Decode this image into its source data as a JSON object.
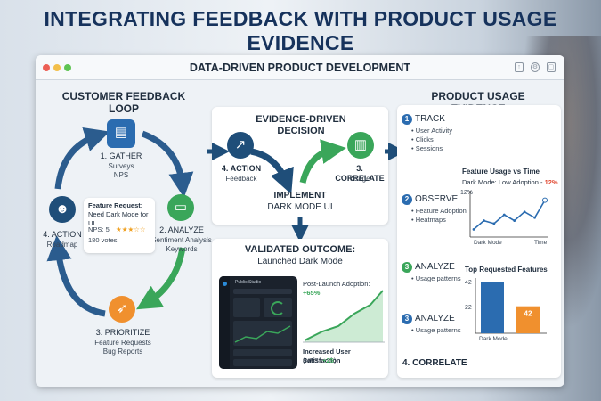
{
  "headline": "INTEGRATING FEEDBACK WITH PRODUCT USAGE EVIDENCE",
  "window": {
    "title": "DATA-DRIVEN PRODUCT DEVELOPMENT"
  },
  "loop": {
    "title": "CUSTOMER FEEDBACK LOOP",
    "gather": {
      "label": "1. GATHER",
      "sub1": "Surveys",
      "sub2": "NPS"
    },
    "analyze": {
      "label": "2. ANALYZE",
      "sub1": "Sentiment Analysis",
      "sub2": "Keywords"
    },
    "prioritize": {
      "label": "3. PRIORITIZE",
      "sub1": "Feature Requests",
      "sub2": "Bug Reports"
    },
    "action": {
      "label": "4. ACTION",
      "sub1": "Roadmap"
    },
    "request_card": {
      "title": "Feature Request:",
      "text": "Need Dark Mode for UI",
      "nps": "NPS: 5",
      "stars": "★★★☆☆",
      "votes": "180 votes"
    }
  },
  "decision": {
    "title_line1": "EVIDENCE-DRIVEN",
    "title_line2": "DECISION",
    "action_label": "4. ACTION",
    "action_sub": "Feedback",
    "correlate_label": "3. CORRELATE",
    "correlate_sub": "Usage",
    "implement_line1": "IMPLEMENT",
    "implement_line2": "DARK MODE UI"
  },
  "outcome": {
    "title": "VALIDATED OUTCOME:",
    "subtitle": "Launched Dark Mode",
    "adoption_label": "Post-Launch Adoption:",
    "adoption_value": "+65%",
    "satisfaction_line1": "Increased User Satisfaction",
    "satisfaction_line2": "(NPS:",
    "satisfaction_value": "+25",
    "satisfaction_close": ")",
    "mock_title": "Public Studio"
  },
  "usage": {
    "title": "PRODUCT USAGE EVIDENCE",
    "track": {
      "num": "1",
      "label": "TRACK",
      "bullets": [
        "User Activity",
        "Clicks",
        "Sessions"
      ]
    },
    "observe": {
      "num": "2",
      "label": "OBSERVE",
      "bullets": [
        "Feature Adoption",
        "Heatmaps"
      ]
    },
    "analyze1": {
      "num": "3",
      "label": "ANALYZE",
      "bullets": [
        "Usage patterns"
      ]
    },
    "analyze2": {
      "num": "3",
      "label": "ANALYZE",
      "bullets": [
        "Usage patterns"
      ]
    },
    "correlate": {
      "label": "4. CORRELATE"
    }
  },
  "chart_data": [
    {
      "type": "line",
      "title": "Feature Usage vs Time",
      "subtitle_prefix": "Dark Mode: Low Adoption -",
      "subtitle_value": "12%",
      "ytick": "12%",
      "xticks": [
        "Dark Mode",
        "Time"
      ],
      "x": [
        0,
        1,
        2,
        3,
        4,
        5,
        6,
        7
      ],
      "values": [
        2,
        5,
        4,
        7,
        5,
        8,
        6,
        12
      ],
      "ylim": [
        0,
        14
      ],
      "color": "#2b6cb0"
    },
    {
      "type": "bar",
      "title": "Top Requested Features",
      "categories": [
        "Dark Mode",
        ""
      ],
      "values": [
        42,
        22
      ],
      "ytick_top": "42",
      "ytick_mid": "22",
      "bar_label": "42",
      "xtick": "Dark Mode",
      "ylim": [
        0,
        45
      ],
      "colors": [
        "#2b6cb0",
        "#f0902e"
      ]
    }
  ],
  "colors": {
    "blue": "#2b6cb0",
    "navy": "#1f4e79",
    "green": "#3aa65a",
    "orange": "#f0902e",
    "teal": "#2a9d8f",
    "red": "#e0462f"
  }
}
